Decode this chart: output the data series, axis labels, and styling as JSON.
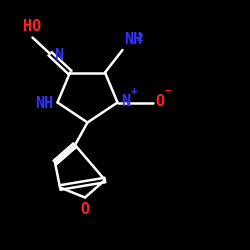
{
  "background": "#000000",
  "bond_color": "#ffffff",
  "bond_width": 1.8,
  "text_color_blue": "#3333ff",
  "text_color_red": "#ff2020",
  "font_size_labels": 11,
  "font_size_small": 8,
  "xlim": [
    0,
    10
  ],
  "ylim": [
    0,
    10
  ]
}
